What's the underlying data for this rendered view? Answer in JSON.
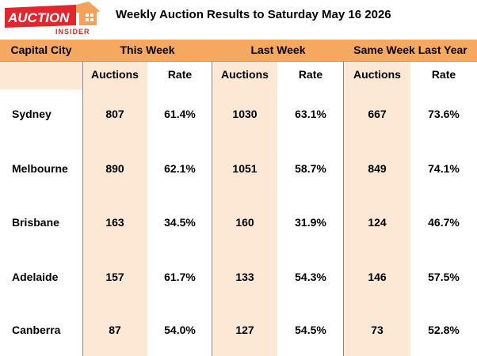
{
  "logo": {
    "main_text": "AUCTION",
    "sub_text": "INSIDER"
  },
  "title": "Weekly Auction Results to Saturday May 16 2026",
  "colors": {
    "header_orange": "#f5a860",
    "shade": "#fde8d6",
    "logo_red": "#e3262d"
  },
  "headers": {
    "city": "Capital City",
    "this_week": "This Week",
    "last_week": "Last Week",
    "last_year": "Same Week Last Year"
  },
  "subheaders": {
    "tw_auctions": "Auctions",
    "tw_rate": "Rate",
    "lw_auctions": "Auctions",
    "lw_rate": "Rate",
    "ly_auctions": "Auctions",
    "ly_rate": "Rate"
  },
  "rows": [
    {
      "city": "Sydney",
      "tw_auctions": "807",
      "tw_rate": "61.4%",
      "lw_auctions": "1030",
      "lw_rate": "63.1%",
      "ly_auctions": "667",
      "ly_rate": "73.6%"
    },
    {
      "city": "Melbourne",
      "tw_auctions": "890",
      "tw_rate": "62.1%",
      "lw_auctions": "1051",
      "lw_rate": "58.7%",
      "ly_auctions": "849",
      "ly_rate": "74.1%"
    },
    {
      "city": "Brisbane",
      "tw_auctions": "163",
      "tw_rate": "34.5%",
      "lw_auctions": "160",
      "lw_rate": "31.9%",
      "ly_auctions": "124",
      "ly_rate": "46.7%"
    },
    {
      "city": "Adelaide",
      "tw_auctions": "157",
      "tw_rate": "61.7%",
      "lw_auctions": "133",
      "lw_rate": "54.3%",
      "ly_auctions": "146",
      "ly_rate": "57.5%"
    },
    {
      "city": "Canberra",
      "tw_auctions": "87",
      "tw_rate": "54.0%",
      "lw_auctions": "127",
      "lw_rate": "54.5%",
      "ly_auctions": "73",
      "ly_rate": "52.8%"
    }
  ]
}
